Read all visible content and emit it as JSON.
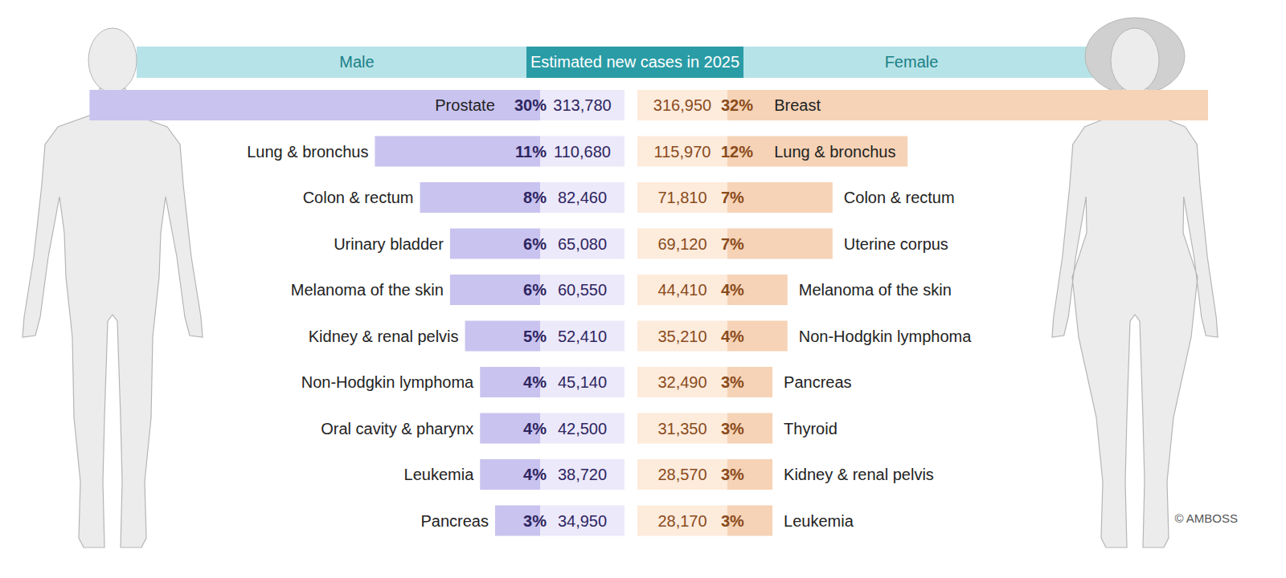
{
  "header": {
    "title": "Estimated new cases in 2025"
  },
  "credit": "© AMBOSS",
  "chart_data": [
    {
      "type": "bar",
      "orientation": "horizontal",
      "title": "Male",
      "categories": [
        "Prostate",
        "Lung & bronchus",
        "Colon & rectum",
        "Urinary bladder",
        "Melanoma of the skin",
        "Kidney & renal pelvis",
        "Non-Hodgkin lymphoma",
        "Oral cavity & pharynx",
        "Leukemia",
        "Pancreas"
      ],
      "values": [
        30,
        11,
        8,
        6,
        6,
        5,
        4,
        4,
        4,
        3
      ],
      "value_labels": [
        "30%",
        "11%",
        "8%",
        "6%",
        "6%",
        "5%",
        "4%",
        "4%",
        "4%",
        "3%"
      ],
      "cases": [
        313780,
        110680,
        82460,
        65080,
        60550,
        52410,
        45140,
        42500,
        38720,
        34950
      ],
      "cases_labels": [
        "313,780",
        "110,680",
        "82,460",
        "65,080",
        "60,550",
        "52,410",
        "45,140",
        "42,500",
        "38,720",
        "34,950"
      ],
      "color": "#c9c3ef",
      "data_labels": true,
      "tick_labels": false,
      "xlim": [
        0,
        32
      ]
    },
    {
      "type": "bar",
      "orientation": "horizontal",
      "title": "Female",
      "categories": [
        "Breast",
        "Lung & bronchus",
        "Colon & rectum",
        "Uterine corpus",
        "Melanoma of the skin",
        "Non-Hodgkin lymphoma",
        "Pancreas",
        "Thyroid",
        "Kidney & renal pelvis",
        "Leukemia"
      ],
      "values": [
        32,
        12,
        7,
        7,
        4,
        4,
        3,
        3,
        3,
        3
      ],
      "value_labels": [
        "32%",
        "12%",
        "7%",
        "7%",
        "4%",
        "4%",
        "3%",
        "3%",
        "3%",
        "3%"
      ],
      "cases": [
        316950,
        115970,
        71810,
        69120,
        44410,
        35210,
        32490,
        31350,
        28570,
        28170
      ],
      "cases_labels": [
        "316,950",
        "115,970",
        "71,810",
        "69,120",
        "44,410",
        "35,210",
        "32,490",
        "31,350",
        "28,570",
        "28,170"
      ],
      "color": "#f6d3b6",
      "data_labels": true,
      "tick_labels": false,
      "xlim": [
        0,
        32
      ]
    }
  ]
}
